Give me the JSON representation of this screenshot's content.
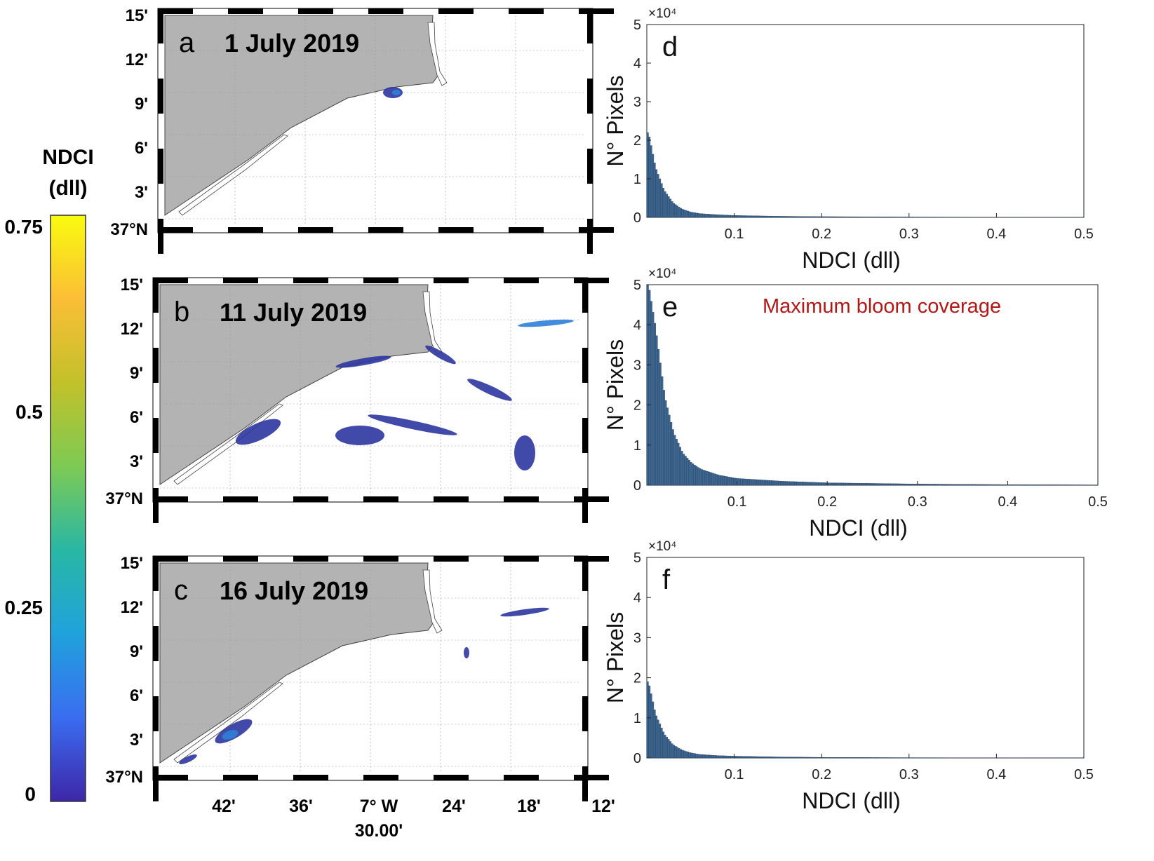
{
  "colorbar": {
    "title_line1": "NDCI",
    "title_line2": "(dll)",
    "ticks": [
      "0.75",
      "0.5",
      "0.25",
      "0"
    ],
    "colors": [
      "#f9fb0e",
      "#fbbe36",
      "#c2c12a",
      "#7dca54",
      "#29b7a4",
      "#20a2dc",
      "#3a6df1",
      "#3e26a8"
    ]
  },
  "maps": {
    "lat_labels": [
      "15'",
      "12'",
      "9'",
      "6'",
      "3'",
      "37°N"
    ],
    "lon_labels": [
      "42'",
      "36'",
      "7° W",
      "24'",
      "18'",
      "12'"
    ],
    "lon_sub_label": "30.00'",
    "panels": [
      {
        "letter": "a",
        "date": "1 July 2019"
      },
      {
        "letter": "b",
        "date": "11 July 2019"
      },
      {
        "letter": "c",
        "date": "16 July 2019"
      }
    ],
    "colors": {
      "land": "#b3b3b3",
      "bloom": "#2d36a0",
      "bloom_light": "#2f7fd8"
    }
  },
  "chart_data": [
    {
      "type": "bar",
      "panel": "d",
      "xlabel": "NDCI (dll)",
      "ylabel": "N° Pixels",
      "exponent_label": "×10⁴",
      "xlim": [
        0,
        0.5
      ],
      "ylim": [
        0,
        5
      ],
      "xticks": [
        "0.1",
        "0.2",
        "0.3",
        "0.4",
        "0.5"
      ],
      "yticks": [
        "0",
        "1",
        "2",
        "3",
        "4",
        "5"
      ],
      "annotation": "",
      "x": [
        0.002,
        0.01,
        0.02,
        0.03,
        0.04,
        0.05,
        0.06,
        0.08,
        0.1,
        0.15,
        0.2,
        0.3,
        0.4,
        0.5
      ],
      "values": [
        2.2,
        1.3,
        0.7,
        0.38,
        0.22,
        0.14,
        0.1,
        0.07,
        0.05,
        0.03,
        0.02,
        0.01,
        0.005,
        0.003
      ]
    },
    {
      "type": "bar",
      "panel": "e",
      "xlabel": "NDCI (dll)",
      "ylabel": "N° Pixels",
      "exponent_label": "×10⁴",
      "xlim": [
        0,
        0.5
      ],
      "ylim": [
        0,
        5
      ],
      "xticks": [
        "0.1",
        "0.2",
        "0.3",
        "0.4",
        "0.5"
      ],
      "yticks": [
        "0",
        "1",
        "2",
        "3",
        "4",
        "5"
      ],
      "annotation": "Maximum bloom coverage",
      "x": [
        0.002,
        0.01,
        0.02,
        0.03,
        0.04,
        0.05,
        0.06,
        0.08,
        0.1,
        0.15,
        0.2,
        0.3,
        0.4,
        0.5
      ],
      "values": [
        5.0,
        3.9,
        2.2,
        1.3,
        0.8,
        0.55,
        0.4,
        0.25,
        0.17,
        0.1,
        0.06,
        0.03,
        0.015,
        0.008
      ]
    },
    {
      "type": "bar",
      "panel": "f",
      "xlabel": "NDCI (dll)",
      "ylabel": "N° Pixels",
      "exponent_label": "×10⁴",
      "xlim": [
        0,
        0.5
      ],
      "ylim": [
        0,
        5
      ],
      "xticks": [
        "0.1",
        "0.2",
        "0.3",
        "0.4",
        "0.5"
      ],
      "yticks": [
        "0",
        "1",
        "2",
        "3",
        "4",
        "5"
      ],
      "annotation": "",
      "x": [
        0.002,
        0.01,
        0.02,
        0.03,
        0.04,
        0.05,
        0.06,
        0.08,
        0.1,
        0.15,
        0.2,
        0.3,
        0.4,
        0.5
      ],
      "values": [
        1.9,
        1.1,
        0.6,
        0.33,
        0.2,
        0.13,
        0.09,
        0.06,
        0.045,
        0.025,
        0.015,
        0.008,
        0.004,
        0.002
      ]
    }
  ]
}
